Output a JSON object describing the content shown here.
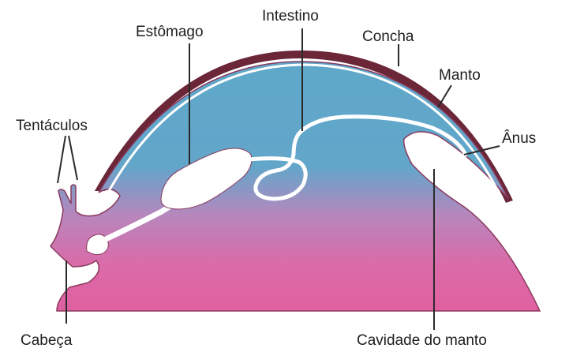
{
  "labels": {
    "intestino": "Intestino",
    "estomago": "Estômago",
    "concha": "Concha",
    "manto": "Manto",
    "tentaculos": "Tentáculos",
    "anus": "Ânus",
    "cabeca": "Cabeça",
    "cavidade": "Cavidade do manto"
  },
  "colors": {
    "shell": "#6b2738",
    "body_top": "#5fa8ca",
    "body_bottom": "#e060a0",
    "outline": "#8a3a5e",
    "organs": "#ffffff"
  }
}
